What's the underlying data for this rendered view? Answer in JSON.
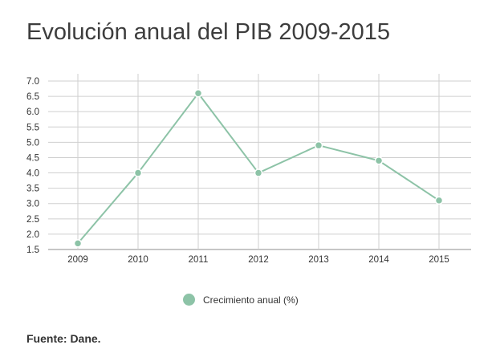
{
  "header": {
    "title": "Evolución anual del PIB 2009-2015"
  },
  "chart_data": {
    "type": "line",
    "title": "Evolución anual del PIB 2009-2015",
    "xlabel": "",
    "ylabel": "",
    "categories": [
      "2009",
      "2010",
      "2011",
      "2012",
      "2013",
      "2014",
      "2015"
    ],
    "series": [
      {
        "name": "Crecimiento anual (%)",
        "values": [
          1.7,
          4.0,
          6.6,
          4.0,
          4.9,
          4.4,
          3.1
        ],
        "color": "#8dc3a7"
      }
    ],
    "yticks": [
      "1.5",
      "2.0",
      "2.5",
      "3.0",
      "3.5",
      "4.0",
      "4.5",
      "5.0",
      "5.5",
      "6.0",
      "6.5",
      "7.0"
    ],
    "ylim": [
      1.5,
      7.0
    ],
    "grid": true,
    "legend_position": "bottom"
  },
  "legend": {
    "label": "Crecimiento anual (%)",
    "color": "#8dc3a7"
  },
  "footer": {
    "source": "Fuente: Dane."
  }
}
